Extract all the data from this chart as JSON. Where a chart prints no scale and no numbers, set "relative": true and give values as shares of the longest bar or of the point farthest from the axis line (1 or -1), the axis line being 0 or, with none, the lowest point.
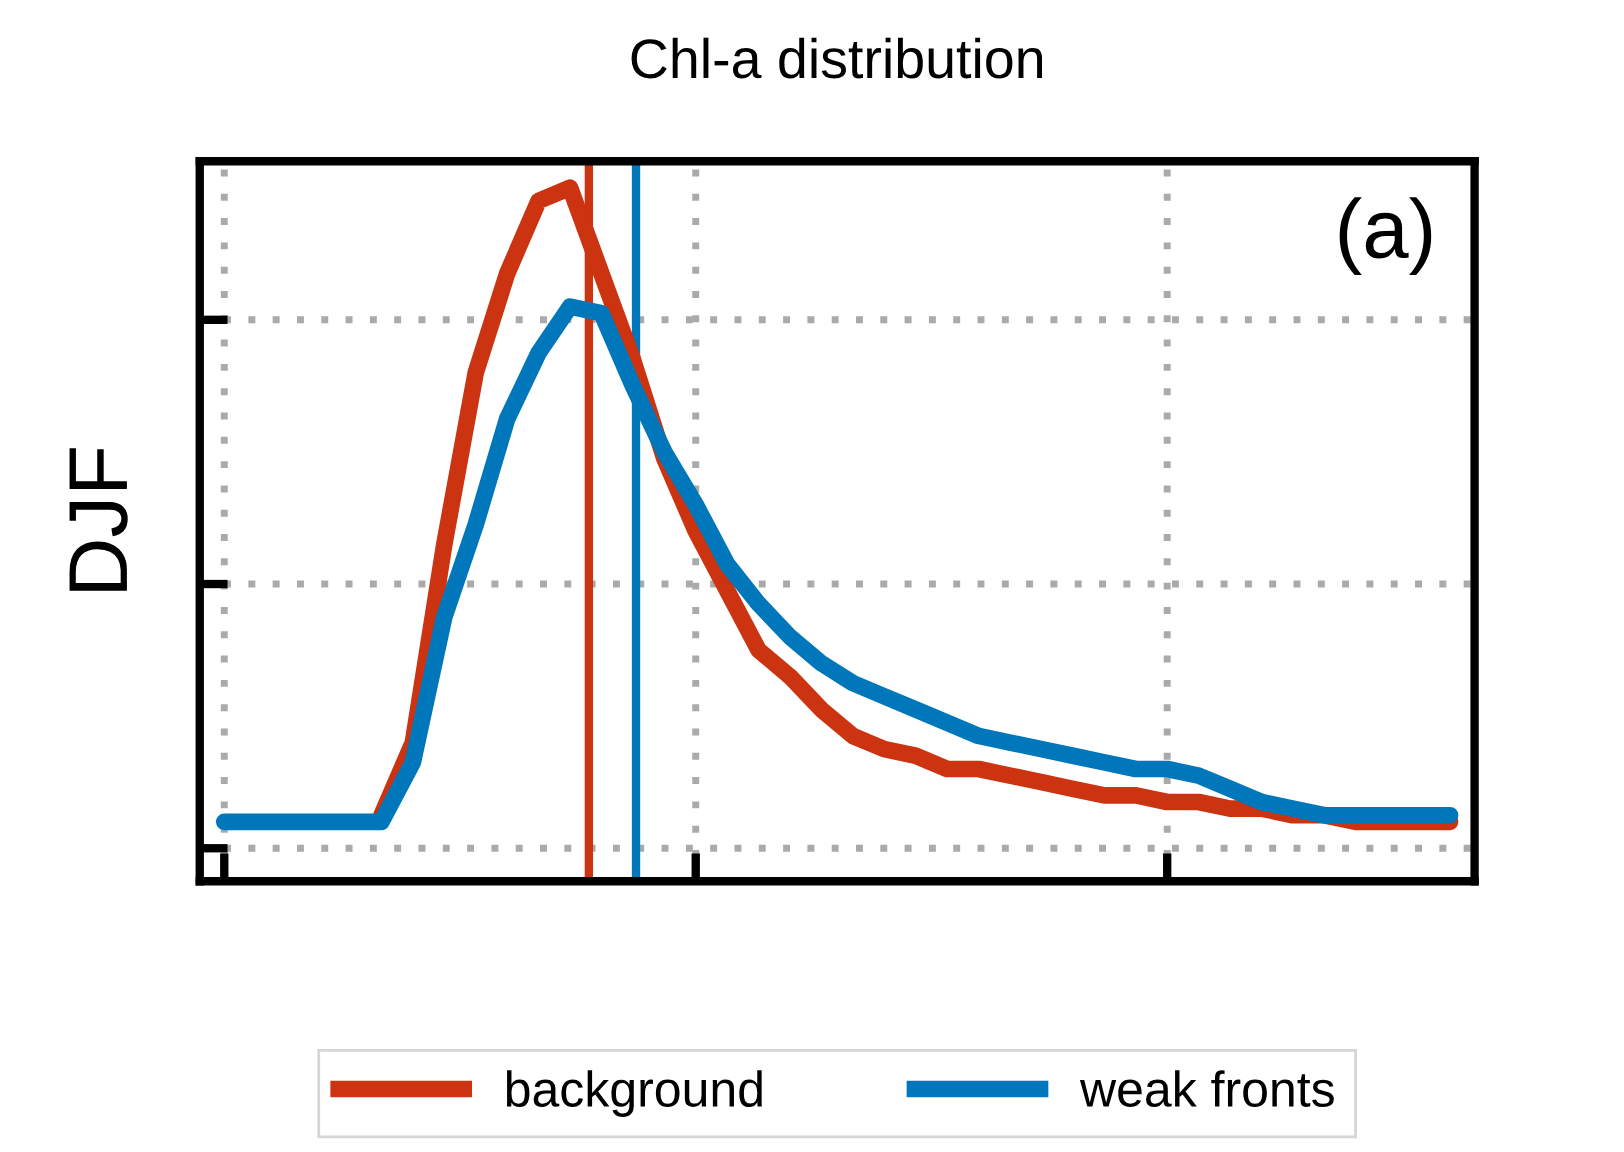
{
  "chart_data": {
    "type": "line",
    "title": "Chl-a distribution",
    "ylabel": "DJF",
    "relative": true,
    "grid": true,
    "legend": "bottom",
    "tick_labels": false,
    "marker": "none",
    "line_style": "solid",
    "categories": [
      null,
      null,
      null,
      null,
      null,
      null,
      null,
      null,
      null,
      null,
      null,
      null,
      null,
      null,
      null,
      null,
      null,
      null,
      null,
      null,
      null,
      null,
      null,
      null,
      null,
      null,
      null,
      null,
      null,
      null,
      null,
      null,
      null,
      null,
      null,
      null,
      null,
      null,
      null,
      null
    ],
    "series": [
      {
        "name": "background",
        "color": "#cc3311",
        "values": [
          null,
          null,
          null,
          null,
          null,
          0.05,
          0.16,
          0.46,
          0.72,
          0.87,
          0.98,
          1.0,
          0.87,
          0.74,
          0.59,
          0.48,
          0.39,
          0.3,
          0.26,
          0.21,
          0.17,
          0.15,
          0.14,
          0.12,
          0.12,
          0.11,
          0.1,
          0.09,
          0.08,
          0.08,
          0.07,
          0.07,
          0.06,
          0.06,
          0.05,
          0.05,
          0.04,
          0.04,
          0.04,
          0.04
        ]
      },
      {
        "name": "weak fronts",
        "color": "#0077bb",
        "values": [
          0.04,
          0.04,
          0.04,
          0.04,
          0.04,
          0.04,
          0.13,
          0.35,
          0.49,
          0.65,
          0.75,
          0.82,
          0.81,
          0.7,
          0.6,
          0.52,
          0.43,
          0.37,
          0.32,
          0.28,
          0.25,
          0.23,
          0.21,
          0.19,
          0.17,
          0.16,
          0.15,
          0.14,
          0.13,
          0.12,
          0.12,
          0.11,
          0.09,
          0.07,
          0.06,
          0.05,
          0.05,
          0.05,
          0.05,
          0.05
        ]
      }
    ],
    "annotations": [
      "(a)"
    ]
  }
}
